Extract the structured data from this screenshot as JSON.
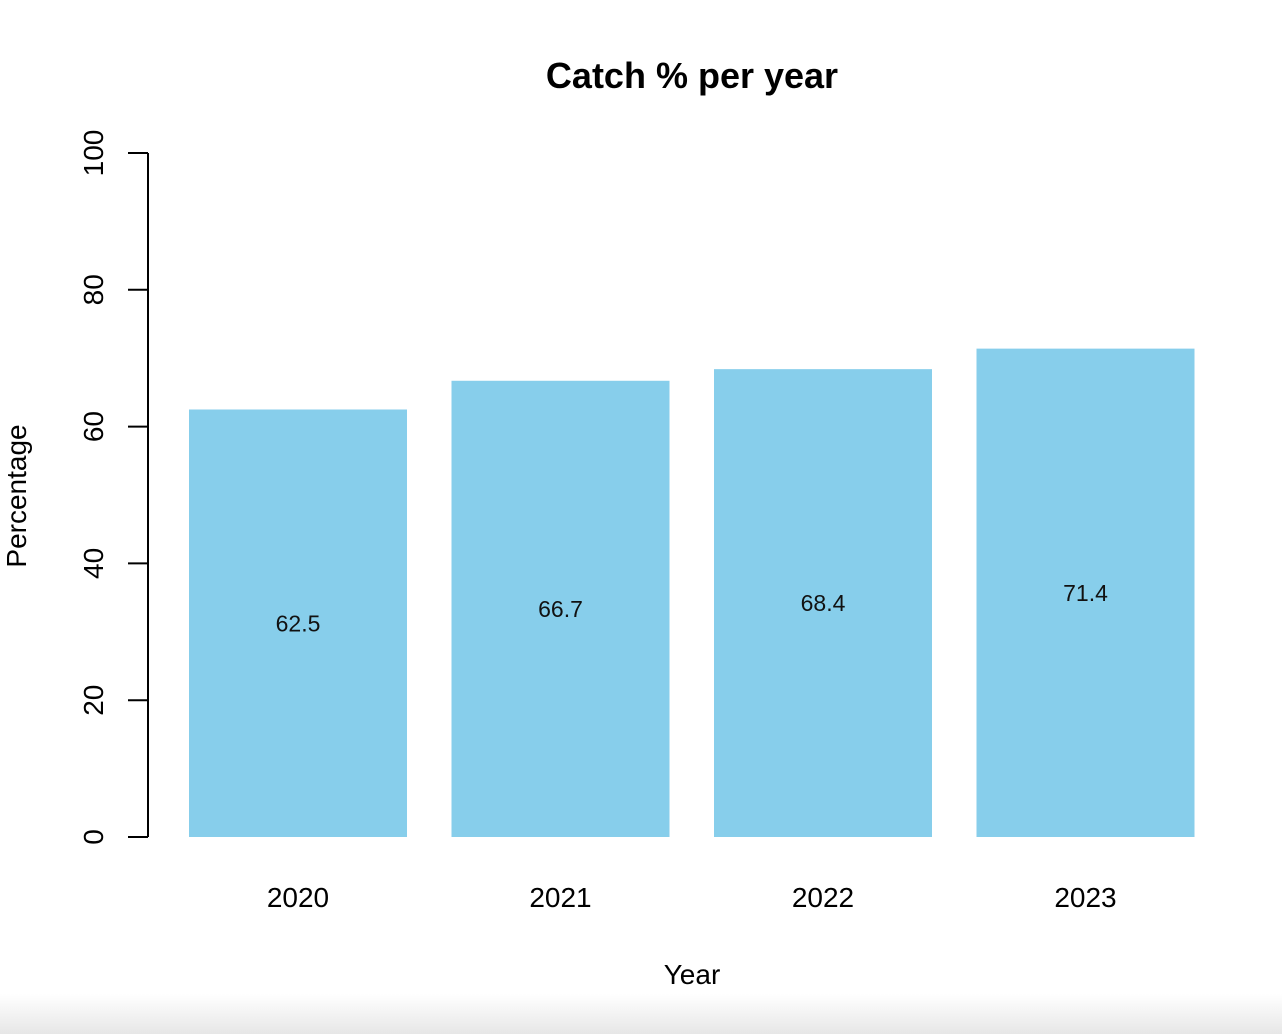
{
  "chart_data": {
    "type": "bar",
    "title": "Catch % per year",
    "xlabel": "Year",
    "ylabel": "Percentage",
    "categories": [
      "2020",
      "2021",
      "2022",
      "2023"
    ],
    "values": [
      62.5,
      66.7,
      68.4,
      71.4
    ],
    "data_labels": [
      "62.5",
      "66.7",
      "68.4",
      "71.4"
    ],
    "ylim": [
      0,
      100
    ],
    "yticks": [
      0,
      20,
      40,
      60,
      80,
      100
    ],
    "ytick_labels": [
      "0",
      "20",
      "40",
      "60",
      "80",
      "100"
    ],
    "bar_color": "#87CEEB",
    "grid": false,
    "legend": "none"
  }
}
